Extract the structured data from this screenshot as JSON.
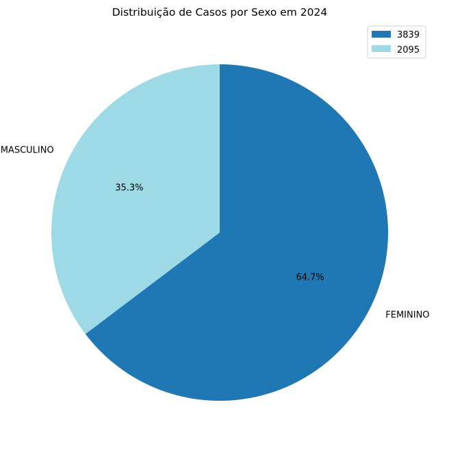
{
  "chart_data": {
    "type": "pie",
    "title": "Distribuição de Casos por Sexo em 2024",
    "slices": [
      {
        "label": "FEMININO",
        "value": 3839,
        "percent_label": "64.7%",
        "color": "#1f77b4"
      },
      {
        "label": "MASCULINO",
        "value": 2095,
        "percent_label": "35.3%",
        "color": "#9edae5"
      }
    ],
    "legend": {
      "placement": "top-right",
      "entries": [
        "3839",
        "2095"
      ]
    },
    "start_angle_deg": 90,
    "direction": "clockwise"
  }
}
